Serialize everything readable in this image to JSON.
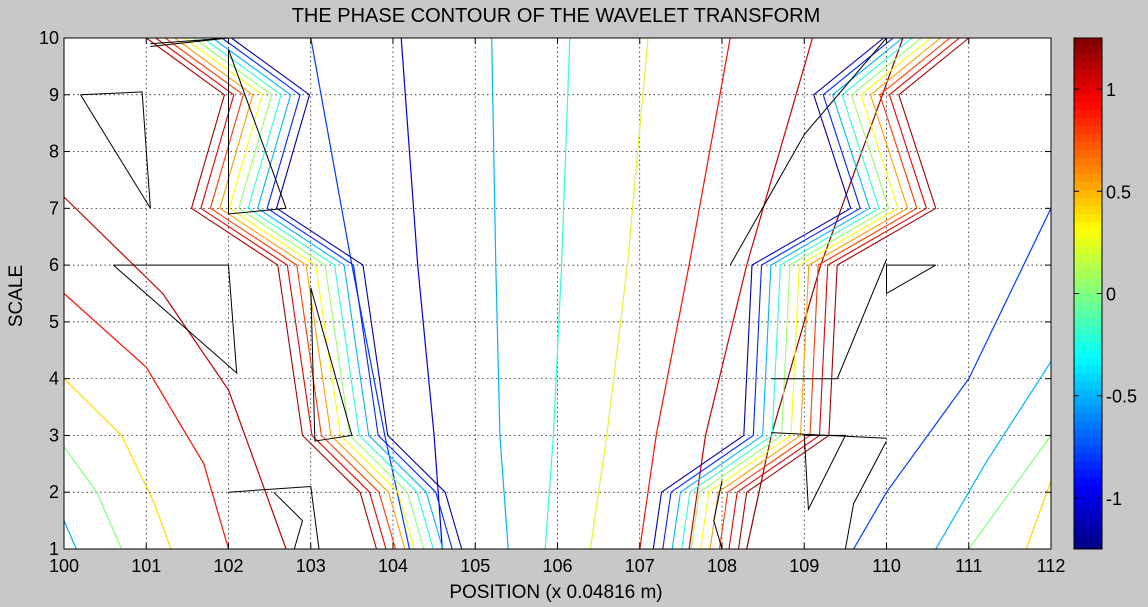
{
  "chart_data": {
    "type": "contour",
    "title": "THE PHASE CONTOUR OF THE WAVELET TRANSFORM",
    "xlabel": "POSITION (x 0.04816 m)",
    "ylabel": "SCALE",
    "xlim": [
      100,
      112
    ],
    "ylim": [
      1,
      10
    ],
    "x_ticks": [
      100,
      101,
      102,
      103,
      104,
      105,
      106,
      107,
      108,
      109,
      110,
      111,
      112
    ],
    "y_ticks": [
      1,
      2,
      3,
      4,
      5,
      6,
      7,
      8,
      9,
      10
    ],
    "grid": true,
    "colormap": "jet",
    "colorbar": {
      "range": [
        -1.25,
        1.25
      ],
      "ticks": [
        -1,
        -0.5,
        0,
        0.5,
        1
      ],
      "tick_labels": [
        "-1",
        "-0.5",
        "0",
        "0.5",
        "1"
      ]
    },
    "contour_levels": [
      -1.0,
      -0.8,
      -0.6,
      -0.4,
      -0.2,
      0,
      0.2,
      0.4,
      0.6,
      0.8,
      1.0
    ],
    "contour_lines": [
      {
        "level": -0.5,
        "points": [
          [
            105.2,
            10
          ],
          [
            105.25,
            6
          ],
          [
            105.3,
            3
          ],
          [
            105.4,
            1
          ]
        ]
      },
      {
        "level": -0.2,
        "points": [
          [
            106.15,
            10
          ],
          [
            106.05,
            6
          ],
          [
            105.95,
            3
          ],
          [
            105.85,
            1
          ]
        ]
      },
      {
        "level": 0.2,
        "points": [
          [
            107.1,
            10
          ],
          [
            106.85,
            6
          ],
          [
            106.6,
            3
          ],
          [
            106.4,
            1
          ]
        ]
      },
      {
        "level": 0.9,
        "points": [
          [
            108.1,
            10
          ],
          [
            107.6,
            6
          ],
          [
            107.2,
            3
          ],
          [
            107.0,
            1
          ]
        ]
      },
      {
        "level": 1.05,
        "points": [
          [
            109.1,
            10
          ],
          [
            108.3,
            6
          ],
          [
            107.8,
            3
          ],
          [
            107.6,
            1
          ]
        ]
      },
      {
        "level": 1.2,
        "points": [
          [
            110.2,
            10
          ],
          [
            109.2,
            6
          ],
          [
            108.6,
            3
          ],
          [
            108.3,
            1
          ]
        ]
      },
      {
        "level": -0.8,
        "points": [
          [
            103.0,
            10
          ],
          [
            103.5,
            6
          ],
          [
            103.9,
            3
          ],
          [
            104.2,
            1
          ]
        ]
      },
      {
        "level": -1.0,
        "points": [
          [
            104.1,
            10
          ],
          [
            104.3,
            6
          ],
          [
            104.5,
            3
          ],
          [
            104.6,
            1
          ]
        ]
      },
      {
        "level": -0.8,
        "points": [
          [
            112.0,
            7.0
          ],
          [
            111.0,
            4.0
          ],
          [
            110.0,
            2.0
          ],
          [
            109.6,
            1
          ]
        ]
      },
      {
        "level": -0.5,
        "points": [
          [
            112.0,
            4.3
          ],
          [
            111.2,
            2.5
          ],
          [
            110.6,
            1
          ]
        ]
      },
      {
        "level": 0.0,
        "points": [
          [
            112.0,
            3.0
          ],
          [
            111.5,
            2.0
          ],
          [
            111.0,
            1
          ]
        ]
      },
      {
        "level": 0.4,
        "points": [
          [
            112.0,
            2.2
          ],
          [
            111.7,
            1
          ]
        ]
      },
      {
        "level": 1.1,
        "points": [
          [
            100,
            7.2
          ],
          [
            101.2,
            5.5
          ],
          [
            102.0,
            3.8
          ],
          [
            102.7,
            1
          ]
        ]
      },
      {
        "level": 0.9,
        "points": [
          [
            100,
            5.5
          ],
          [
            101.0,
            4.2
          ],
          [
            101.7,
            2.5
          ],
          [
            102.0,
            1
          ]
        ]
      },
      {
        "level": 0.4,
        "points": [
          [
            100,
            4.0
          ],
          [
            100.7,
            3.0
          ],
          [
            101.1,
            1.8
          ],
          [
            101.3,
            1
          ]
        ]
      },
      {
        "level": 0.0,
        "points": [
          [
            100,
            2.8
          ],
          [
            100.4,
            2.0
          ],
          [
            100.7,
            1
          ]
        ]
      },
      {
        "level": -0.5,
        "points": [
          [
            100,
            1.5
          ],
          [
            100.15,
            1
          ]
        ]
      }
    ],
    "discontinuity_bands": [
      {
        "points": [
          [
            101.0,
            10
          ],
          [
            101.95,
            9
          ],
          [
            101.55,
            7
          ],
          [
            102.6,
            6
          ],
          [
            102.9,
            3
          ],
          [
            103.6,
            2
          ],
          [
            103.8,
            1
          ]
        ]
      },
      {
        "points": [
          [
            111.0,
            10
          ],
          [
            110.15,
            9
          ],
          [
            110.6,
            7
          ],
          [
            109.4,
            6
          ],
          [
            109.3,
            3
          ],
          [
            108.3,
            2
          ],
          [
            108.2,
            1
          ]
        ]
      }
    ],
    "band_levels": [
      1.15,
      1.0,
      0.8,
      0.55,
      0.3,
      0.05,
      -0.2,
      -0.5,
      -0.85,
      -1.15
    ],
    "black_contours": [
      {
        "points": [
          [
            100.2,
            9
          ],
          [
            100.95,
            9.05
          ],
          [
            101.05,
            7.0
          ],
          [
            100.2,
            9
          ]
        ]
      },
      {
        "points": [
          [
            101.05,
            9.9
          ],
          [
            102.0,
            10
          ],
          [
            101.05,
            9.85
          ]
        ]
      },
      {
        "points": [
          [
            102.0,
            9.8
          ],
          [
            102.7,
            7.0
          ],
          [
            102.0,
            6.9
          ],
          [
            102.0,
            9.8
          ]
        ]
      },
      {
        "points": [
          [
            100.6,
            6.0
          ],
          [
            102.0,
            6.0
          ],
          [
            102.1,
            4.1
          ],
          [
            100.6,
            6.0
          ]
        ]
      },
      {
        "points": [
          [
            103.0,
            5.6
          ],
          [
            103.5,
            3.0
          ],
          [
            103.05,
            2.9
          ],
          [
            103.0,
            5.6
          ]
        ]
      },
      {
        "points": [
          [
            102.0,
            2.0
          ],
          [
            103.0,
            2.1
          ],
          [
            103.1,
            1.0
          ]
        ]
      },
      {
        "points": [
          [
            102.55,
            2.0
          ],
          [
            102.9,
            1.5
          ],
          [
            102.8,
            1.0
          ]
        ]
      },
      {
        "points": [
          [
            110.0,
            10
          ],
          [
            109.0,
            8.3
          ],
          [
            108.1,
            6.0
          ]
        ]
      },
      {
        "points": [
          [
            110.0,
            6.1
          ],
          [
            109.4,
            4.0
          ],
          [
            108.6,
            4.0
          ]
        ]
      },
      {
        "points": [
          [
            110.6,
            6.0
          ],
          [
            110.0,
            5.5
          ],
          [
            110.0,
            6.0
          ],
          [
            110.6,
            6.0
          ]
        ]
      },
      {
        "points": [
          [
            109.0,
            3.0
          ],
          [
            109.5,
            3.0
          ],
          [
            109.05,
            1.7
          ],
          [
            109.0,
            3.0
          ]
        ]
      },
      {
        "points": [
          [
            108.6,
            3.05
          ],
          [
            110.0,
            2.95
          ]
        ]
      },
      {
        "points": [
          [
            108.0,
            2.2
          ],
          [
            107.9,
            1.5
          ],
          [
            108.0,
            1.0
          ]
        ]
      },
      {
        "points": [
          [
            110.0,
            2.9
          ],
          [
            109.6,
            1.8
          ],
          [
            109.5,
            1.0
          ]
        ]
      }
    ]
  }
}
